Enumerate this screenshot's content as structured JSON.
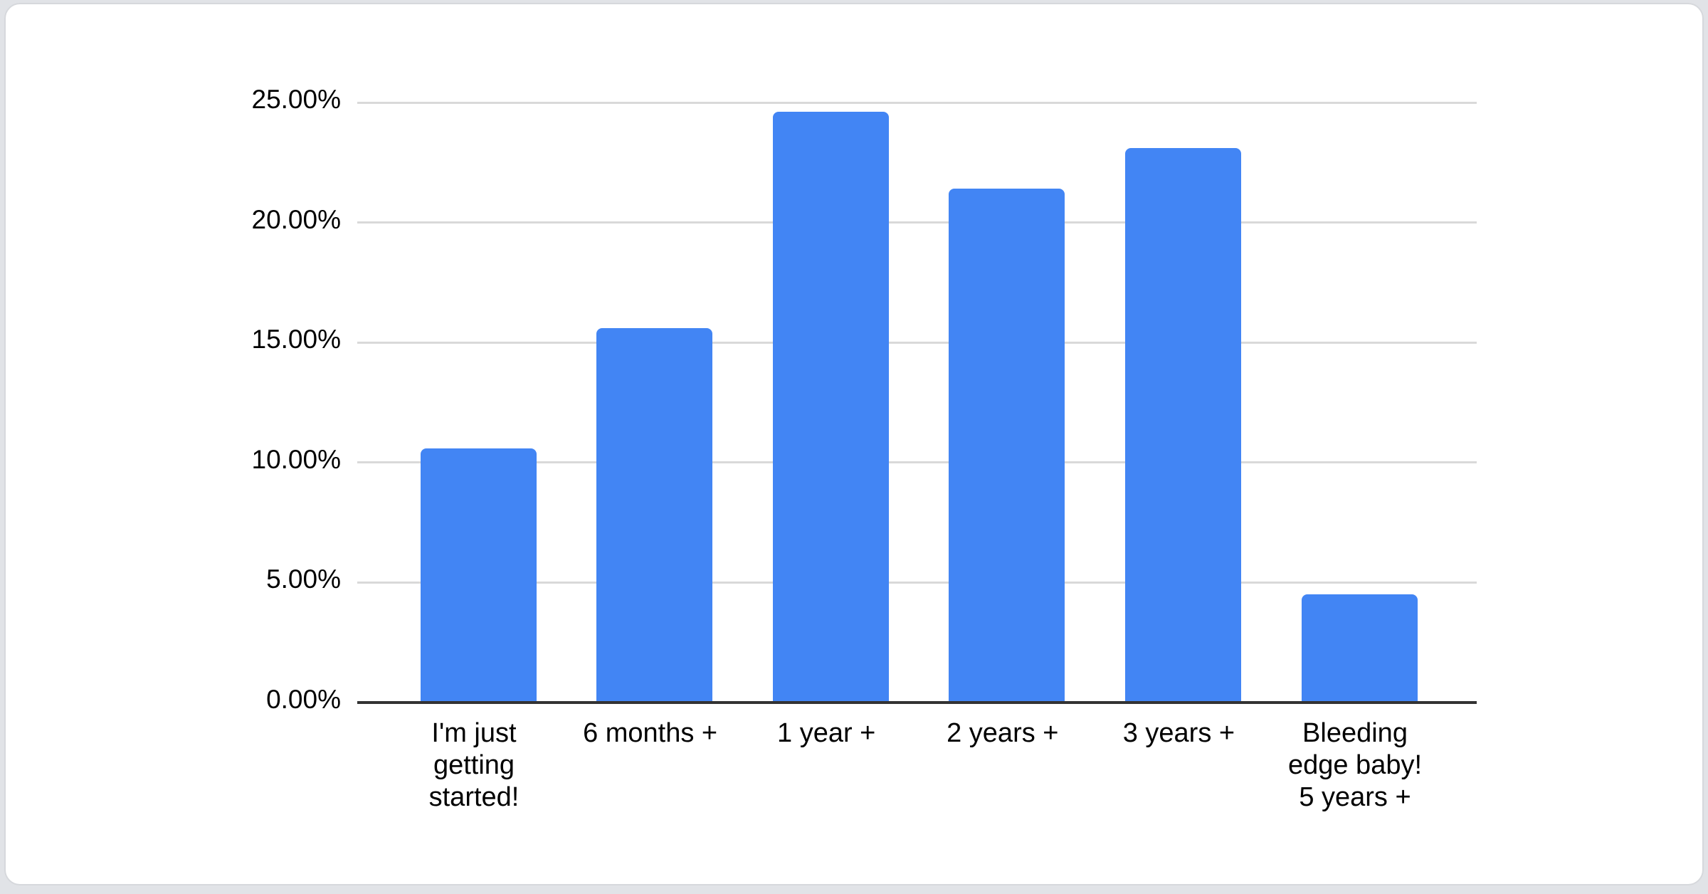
{
  "page": {
    "background_color": "#e1e3e7",
    "card_background": "#ffffff",
    "card_border_color": "#d6d8dc"
  },
  "chart_data": {
    "type": "bar",
    "title": "",
    "xlabel": "",
    "ylabel": "",
    "categories": [
      "I'm just getting started!",
      "6 months +",
      "1 year +",
      "2 years +",
      "3 years +",
      "Bleeding edge baby! 5 years +"
    ],
    "tick_lines": [
      [
        "I'm just",
        "getting",
        "started!"
      ],
      [
        "6 months +"
      ],
      [
        "1 year +"
      ],
      [
        "2 years +"
      ],
      [
        "3 years +"
      ],
      [
        "Bleeding",
        "edge baby!",
        "5 years +"
      ]
    ],
    "values": [
      10.6,
      15.6,
      24.6,
      21.4,
      23.1,
      4.5
    ],
    "value_unit": "%",
    "ylim": [
      0,
      25
    ],
    "y_tick_step": 5,
    "y_tick_labels": [
      "0.00%",
      "5.00%",
      "10.00%",
      "15.00%",
      "20.00%",
      "25.00%"
    ],
    "grid": true,
    "legend": "none",
    "bar_color": "#4285f4",
    "gridline_color": "#d9d9d9",
    "axis_line_color": "#333333",
    "label_color": "#000000"
  }
}
